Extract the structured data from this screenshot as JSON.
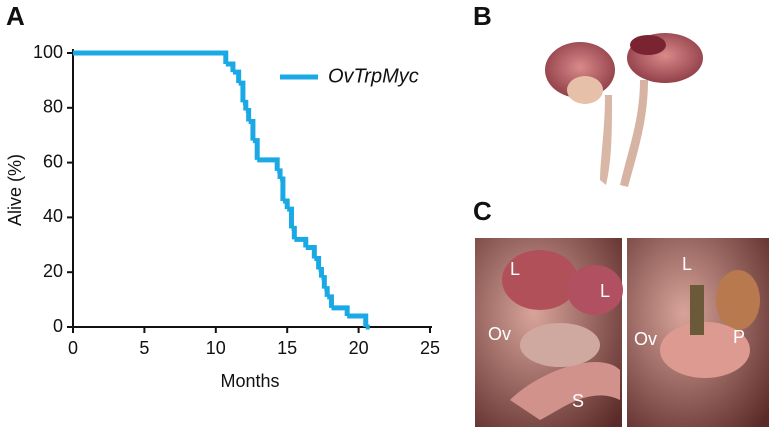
{
  "chart_data": {
    "type": "step",
    "xlabel": "Months",
    "ylabel": "Alive (%)",
    "xlim": [
      0,
      25
    ],
    "xticks": [
      0,
      5,
      10,
      15,
      20,
      25
    ],
    "ylim": [
      0,
      100
    ],
    "yticks": [
      0,
      20,
      40,
      60,
      80,
      100
    ],
    "series": [
      {
        "name": "OvTrpMyc",
        "color": "#1aa9e4",
        "x": [
          0,
          10.7,
          11.2,
          11.6,
          11.9,
          12.1,
          12.3,
          12.6,
          12.9,
          14.3,
          14.5,
          14.7,
          15.0,
          15.3,
          15.5,
          16.3,
          16.9,
          17.2,
          17.4,
          17.6,
          17.8,
          18.1,
          19.2,
          20.5
        ],
        "values": [
          100,
          96,
          93,
          89,
          82,
          79,
          75,
          68,
          61,
          57,
          54,
          46,
          43,
          36,
          32,
          29,
          25,
          21,
          18,
          14,
          11,
          7,
          4,
          0
        ]
      }
    ],
    "legend": "top-right"
  },
  "panels": {
    "a": "A",
    "b": "B",
    "c": "C"
  },
  "photo_labels": {
    "c_left": [
      "L",
      "L",
      "Ov",
      "S"
    ],
    "c_right": [
      "L",
      "Ov",
      "P"
    ]
  }
}
